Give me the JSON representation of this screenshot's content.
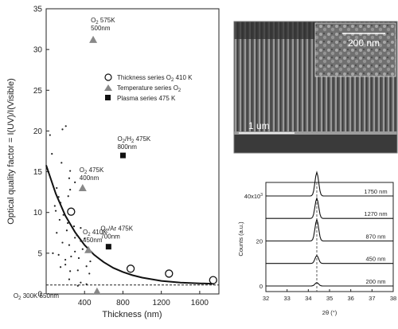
{
  "chart_data": [
    {
      "type": "scatter",
      "xlabel": "Thickness (nm)",
      "ylabel": "Optical quality factor = I(UV)/I(Visible)",
      "xlim": [
        0,
        1800
      ],
      "ylim": [
        0,
        35
      ],
      "x_ticks": [
        400,
        800,
        1200,
        1600
      ],
      "y_ticks": [
        0,
        5,
        10,
        15,
        20,
        25,
        30,
        35
      ],
      "legend": {
        "placement": "top-right",
        "entries": [
          {
            "label": "Thickness series O",
            "sub": "2",
            "tail": " 410 K",
            "marker": "open-circle"
          },
          {
            "label": "Temperature series O",
            "sub": "2",
            "tail": "",
            "marker": "triangle"
          },
          {
            "label": "Plasma series 475 K",
            "sub": "",
            "tail": "",
            "marker": "square"
          }
        ]
      },
      "series": [
        {
          "marker": "open-circle",
          "points": [
            [
              260,
              10.1
            ],
            [
              880,
              3.1
            ],
            [
              1280,
              2.5
            ],
            [
              1740,
              1.7
            ]
          ]
        },
        {
          "marker": "triangle",
          "points": [
            [
              490,
              31.2
            ],
            [
              380,
              13.0
            ],
            [
              440,
              5.4
            ],
            [
              530,
              0.3
            ]
          ]
        },
        {
          "marker": "square",
          "points": [
            [
              800,
              17.0
            ],
            [
              650,
              5.8
            ]
          ]
        },
        {
          "marker": "dot",
          "points": [
            [
              40,
              19.5
            ],
            [
              60,
              17.2
            ],
            [
              110,
              13.0
            ],
            [
              130,
              11.9
            ],
            [
              160,
              16.1
            ],
            [
              170,
              20.2
            ],
            [
              205,
              20.6
            ],
            [
              250,
              15.1
            ],
            [
              240,
              14.2
            ],
            [
              300,
              13.7
            ],
            [
              250,
              12.8
            ],
            [
              230,
              12.0
            ],
            [
              150,
              11.2
            ],
            [
              90,
              10.8
            ],
            [
              100,
              10.2
            ],
            [
              180,
              9.7
            ],
            [
              140,
              9.1
            ],
            [
              225,
              8.7
            ],
            [
              290,
              8.3
            ],
            [
              360,
              8.1
            ],
            [
              215,
              7.8
            ],
            [
              110,
              7.5
            ],
            [
              300,
              6.9
            ],
            [
              360,
              6.5
            ],
            [
              400,
              6.8
            ],
            [
              170,
              6.3
            ],
            [
              240,
              6.0
            ],
            [
              300,
              5.2
            ],
            [
              70,
              5.0
            ],
            [
              130,
              4.8
            ],
            [
              200,
              4.2
            ],
            [
              260,
              4.6
            ],
            [
              340,
              4.4
            ],
            [
              200,
              3.6
            ],
            [
              150,
              3.3
            ],
            [
              250,
              2.8
            ],
            [
              330,
              2.9
            ],
            [
              420,
              3.4
            ],
            [
              450,
              2.5
            ],
            [
              240,
              1.8
            ],
            [
              360,
              1.4
            ],
            [
              420,
              1.2
            ],
            [
              330,
              1.0
            ],
            [
              460,
              4.0
            ],
            [
              380,
              5.5
            ],
            [
              320,
              7.2
            ]
          ]
        }
      ],
      "fit_curve": [
        [
          0,
          15.8
        ],
        [
          100,
          12.3
        ],
        [
          200,
          9.6
        ],
        [
          300,
          7.6
        ],
        [
          400,
          6.0
        ],
        [
          500,
          4.8
        ],
        [
          600,
          3.9
        ],
        [
          700,
          3.2
        ],
        [
          800,
          2.7
        ],
        [
          900,
          2.3
        ],
        [
          1000,
          2.0
        ],
        [
          1200,
          1.6
        ],
        [
          1400,
          1.4
        ],
        [
          1600,
          1.3
        ],
        [
          1750,
          1.25
        ]
      ],
      "reference_line_y": 1.1,
      "annotations": [
        {
          "pre": "O",
          "sub": "2",
          "post": " 575K",
          "line2": "500nm",
          "x": 490,
          "y": 31.2
        },
        {
          "pre": "O",
          "sub": "2",
          "post": "/H",
          "sub2": "2",
          "post2": " 475K",
          "line2": "800nm",
          "x": 800,
          "y": 17.0
        },
        {
          "pre": "O",
          "sub": "2",
          "post": " 475K",
          "line2": "400nm",
          "x": 380,
          "y": 13.0
        },
        {
          "pre": "O",
          "sub": "2",
          "post": " 410K",
          "line2": "450nm",
          "x": 440,
          "y": 5.4
        },
        {
          "pre": "O",
          "sub": "2",
          "post": "/Ar 475K",
          "line2": "700nm",
          "x": 650,
          "y": 5.8
        },
        {
          "pre": "O",
          "sub": "2",
          "post": " 300K 550nm",
          "line2": "",
          "x": 530,
          "y": 0.3
        }
      ]
    },
    {
      "type": "line",
      "xlabel": "2θ (°)",
      "ylabel": "Counts (a.u.)",
      "xlim": [
        32,
        38
      ],
      "x_ticks": [
        32,
        33,
        34,
        35,
        36,
        37,
        38
      ],
      "y_ticks": [
        0,
        20,
        40
      ],
      "y_tick_labels": [
        "0",
        "20",
        "40x10"
      ],
      "y_exp": "3",
      "ylim": [
        0,
        46
      ],
      "reference_x": 34.4,
      "series": [
        {
          "name": "200 nm",
          "offset": 0,
          "peak": 1.5
        },
        {
          "name": "450 nm",
          "offset": 10,
          "peak": 3.5
        },
        {
          "name": "870 nm",
          "offset": 20,
          "peak": 9.5
        },
        {
          "name": "1270 nm",
          "offset": 30,
          "peak": 9.0
        },
        {
          "name": "1750 nm",
          "offset": 40,
          "peak": 10.5
        }
      ],
      "peak_center": 34.4
    }
  ],
  "micrograph": {
    "scale_main": "1 um",
    "scale_inset": "200 nm"
  }
}
